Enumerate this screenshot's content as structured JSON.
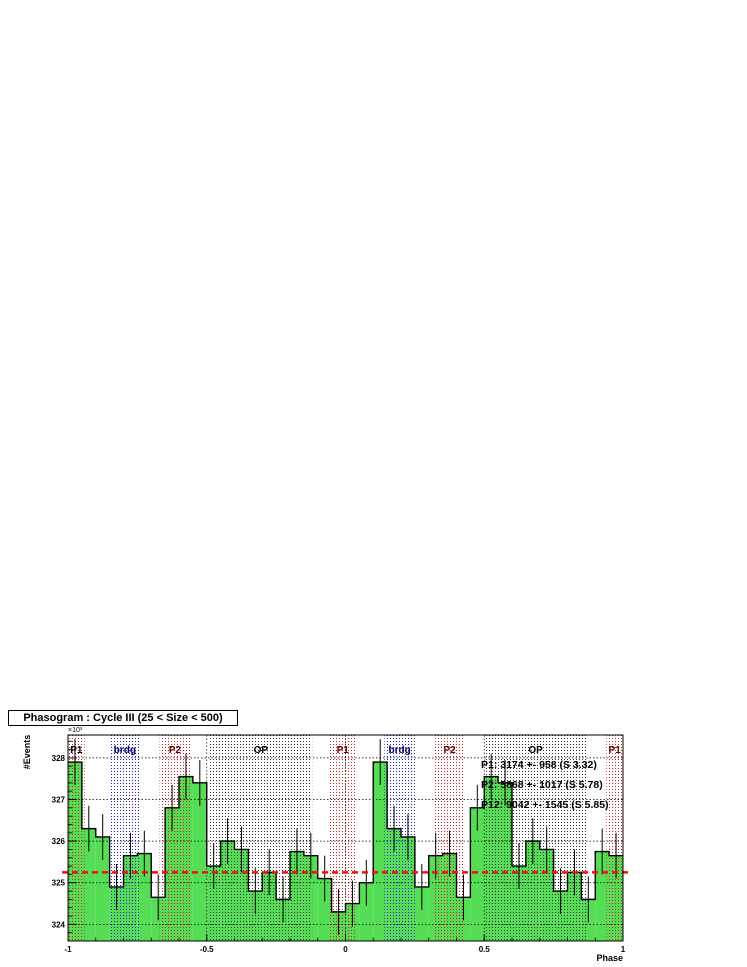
{
  "chart_data": {
    "type": "bar",
    "title": "Phasogram : Cycle III  (25 < Size < 500)",
    "xlabel": "Phase",
    "ylabel": "#Events",
    "y_multiplier": "×10³",
    "xlim": [
      -1.0,
      1.0
    ],
    "ylim": [
      323.6,
      328.55
    ],
    "x_ticks": [
      -1,
      -0.5,
      0,
      0.5,
      1
    ],
    "x_tick_labels": [
      "-1",
      "-0.5",
      "0",
      "0.5",
      "1"
    ],
    "y_ticks": [
      324,
      325,
      326,
      327,
      328
    ],
    "y_tick_labels": [
      "324",
      "325",
      "326",
      "327",
      "328"
    ],
    "grid": true,
    "bin_width": 0.05,
    "bin_starts": [
      -1.0,
      -0.95,
      -0.9,
      -0.85,
      -0.8,
      -0.75,
      -0.7,
      -0.65,
      -0.6,
      -0.55,
      -0.5,
      -0.45,
      -0.4,
      -0.35,
      -0.3,
      -0.25,
      -0.2,
      -0.15,
      -0.1,
      -0.05,
      0.0,
      0.05,
      0.1,
      0.15,
      0.2,
      0.25,
      0.3,
      0.35,
      0.4,
      0.45,
      0.5,
      0.55,
      0.6,
      0.65,
      0.7,
      0.75,
      0.8,
      0.85,
      0.9,
      0.95
    ],
    "values": [
      327.9,
      326.3,
      326.1,
      324.9,
      325.65,
      325.7,
      324.65,
      326.8,
      327.55,
      327.4,
      325.4,
      326.0,
      325.8,
      324.8,
      325.25,
      324.6,
      325.75,
      325.65,
      325.1,
      324.3,
      324.5,
      325.0,
      327.9,
      326.3,
      326.1,
      324.9,
      325.65,
      325.7,
      324.65,
      326.8,
      327.55,
      327.4,
      325.4,
      326.0,
      325.8,
      324.8,
      325.25,
      324.6,
      325.75,
      325.65
    ],
    "errors": [
      0.55,
      0.55,
      0.55,
      0.55,
      0.55,
      0.55,
      0.55,
      0.55,
      0.55,
      0.55,
      0.55,
      0.55,
      0.55,
      0.55,
      0.55,
      0.55,
      0.55,
      0.55,
      0.55,
      0.55,
      0.55,
      0.55,
      0.55,
      0.55,
      0.55,
      0.55,
      0.55,
      0.55,
      0.55,
      0.55,
      0.55,
      0.55,
      0.55,
      0.55,
      0.55,
      0.55,
      0.55,
      0.55,
      0.55,
      0.55
    ],
    "background_level": 325.25,
    "regions": [
      {
        "label": "P1",
        "from": -1.0,
        "to": -0.94,
        "color": "#cc2222",
        "label_color": "#000000"
      },
      {
        "label": "brdg",
        "from": -0.85,
        "to": -0.74,
        "color": "#2222cc",
        "label_color": "#000066"
      },
      {
        "label": "P2",
        "from": -0.67,
        "to": -0.56,
        "color": "#cc2222",
        "label_color": "#660000"
      },
      {
        "label": "OP",
        "from": -0.49,
        "to": -0.12,
        "color": "#333333",
        "label_color": "#000000"
      },
      {
        "label": "P1",
        "from": -0.06,
        "to": 0.04,
        "color": "#cc2222",
        "label_color": "#660000"
      },
      {
        "label": "brdg",
        "from": 0.14,
        "to": 0.25,
        "color": "#2222cc",
        "label_color": "#000066"
      },
      {
        "label": "P2",
        "from": 0.32,
        "to": 0.43,
        "color": "#cc2222",
        "label_color": "#660000"
      },
      {
        "label": "OP",
        "from": 0.5,
        "to": 0.87,
        "color": "#333333",
        "label_color": "#000000"
      },
      {
        "label": "P1",
        "from": 0.94,
        "to": 1.0,
        "color": "#cc2222",
        "label_color": "#660000"
      }
    ],
    "annotations": [
      "P1: 3174 +- 958 (S 3.32)",
      "P2: 5868 +- 1017 (S 5.78)",
      "P12: 9042 +- 1545 (S 5.85)"
    ],
    "colors": {
      "bars": "#55dd55",
      "outline": "#000000",
      "background_line": "#ee1111"
    }
  }
}
